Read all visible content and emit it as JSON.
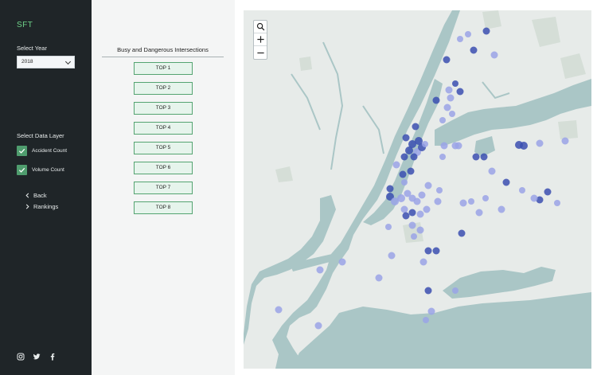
{
  "brand": "SFT",
  "year_section": {
    "label": "Select Year",
    "selected": "2018"
  },
  "data_layer": {
    "label": "Select Data Layer",
    "options": [
      {
        "label": "Accident Count",
        "checked": true
      },
      {
        "label": "Volume Count",
        "checked": true
      }
    ]
  },
  "nav": {
    "back": "Back",
    "rankings": "Rankings"
  },
  "social": [
    "instagram-icon",
    "twitter-icon",
    "facebook-icon"
  ],
  "panel": {
    "title": "Busy and Dangerous Intersections",
    "buttons": [
      "TOP 1",
      "TOP 2",
      "TOP 3",
      "TOP 4",
      "TOP 5",
      "TOP 6",
      "TOP 7",
      "TOP 8"
    ]
  },
  "map": {
    "controls": [
      "search-icon",
      "zoom-in-icon",
      "zoom-out-icon"
    ],
    "colors": {
      "land": "#e7ebe9",
      "water": "#aac6c6",
      "park": "#d5ded7",
      "dot_dark": "#3b4fb0",
      "dot_light": "#9aa3e6"
    }
  }
}
